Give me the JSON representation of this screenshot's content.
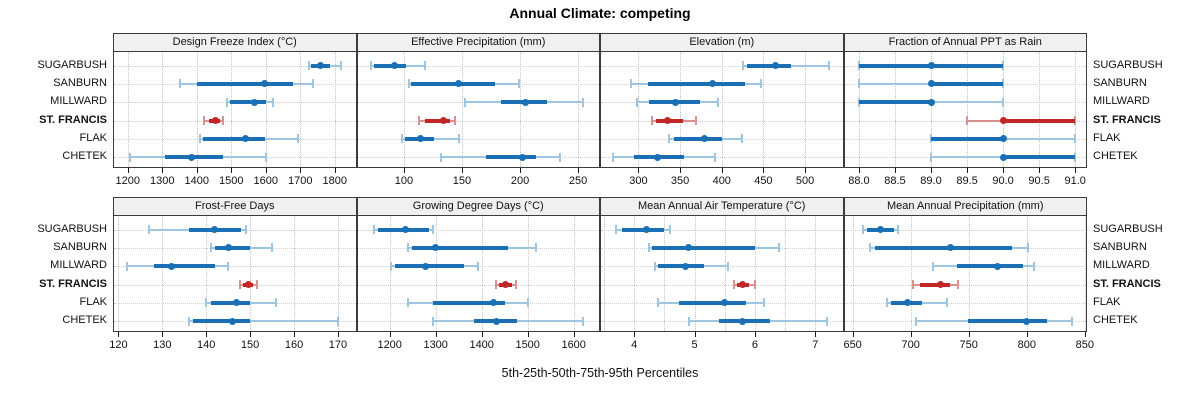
{
  "title": "Annual Climate: competing",
  "xlabel": "5th-25th-50th-75th-95th Percentiles",
  "sites": [
    "SUGARBUSH",
    "SANBURN",
    "MILLWARD",
    "ST. FRANCIS",
    "FLAK",
    "CHETEK"
  ],
  "highlight_site": "ST. FRANCIS",
  "colors": {
    "blue": "#1b6fb5",
    "blue_light": "#9fc6e1",
    "red": "#c22727",
    "red_light": "#dc9191",
    "header_bg": "#f0f0f0",
    "panel_border": "#3c3c3c",
    "grid": "#c3c3c3"
  },
  "chart_data": {
    "type": "dotplot_percentiles",
    "percentiles": [
      5,
      25,
      50,
      75,
      95
    ],
    "layout": {
      "rows": 2,
      "cols": 4,
      "legend": "none",
      "grid": "dotted"
    },
    "panels": [
      {
        "title": "Design Freeze Index (°C)",
        "row": 0,
        "col": 0,
        "xlim": [
          1160,
          1860
        ],
        "ticks": {
          "values": [
            1200,
            1300,
            1400,
            1500,
            1600,
            1700,
            1800
          ],
          "labels": [
            "1200",
            "1300",
            "1400",
            "1500",
            "1600",
            "1700",
            "1800"
          ]
        },
        "series": [
          {
            "site": "SUGARBUSH",
            "p": [
              1725,
              1732,
              1758,
              1786,
              1818
            ]
          },
          {
            "site": "SANBURN",
            "p": [
              1350,
              1400,
              1597,
              1680,
              1738
            ]
          },
          {
            "site": "MILLWARD",
            "p": [
              1488,
              1495,
              1568,
              1601,
              1622
            ]
          },
          {
            "site": "ST. FRANCIS",
            "p": [
              1421,
              1434,
              1455,
              1468,
              1476
            ]
          },
          {
            "site": "FLAK",
            "p": [
              1408,
              1418,
              1540,
              1599,
              1693
            ]
          },
          {
            "site": "CHETEK",
            "p": [
              1206,
              1308,
              1386,
              1476,
              1601
            ]
          }
        ]
      },
      {
        "title": "Effective Precipitation (mm)",
        "row": 0,
        "col": 1,
        "xlim": [
          60,
          268
        ],
        "ticks": {
          "values": [
            100,
            150,
            200,
            250
          ],
          "labels": [
            "100",
            "150",
            "200",
            "250"
          ]
        },
        "series": [
          {
            "site": "SUGARBUSH",
            "p": [
              72,
              74,
              92,
              102,
              118
            ]
          },
          {
            "site": "SANBURN",
            "p": [
              104,
              106,
              147,
              178,
              199
            ]
          },
          {
            "site": "MILLWARD",
            "p": [
              153,
              184,
              205,
              223,
              254
            ]
          },
          {
            "site": "ST. FRANCIS",
            "p": [
              113,
              118,
              134,
              140,
              144
            ]
          },
          {
            "site": "FLAK",
            "p": [
              98,
              101,
              114,
              126,
              147
            ]
          },
          {
            "site": "CHETEK",
            "p": [
              132,
              171,
              202,
              214,
              234
            ]
          }
        ]
      },
      {
        "title": "Elevation (m)",
        "row": 0,
        "col": 2,
        "xlim": [
          255,
          545
        ],
        "ticks": {
          "values": [
            300,
            350,
            400,
            450,
            500
          ],
          "labels": [
            "300",
            "350",
            "400",
            "450",
            "500"
          ]
        },
        "series": [
          {
            "site": "SUGARBUSH",
            "p": [
              425,
              430,
              464,
              483,
              529
            ]
          },
          {
            "site": "SANBURN",
            "p": [
              291,
              311,
              389,
              428,
              447
            ]
          },
          {
            "site": "MILLWARD",
            "p": [
              298,
              313,
              345,
              374,
              396
            ]
          },
          {
            "site": "ST. FRANCIS",
            "p": [
              316,
              321,
              335,
              353,
              369
            ]
          },
          {
            "site": "FLAK",
            "p": [
              337,
              343,
              379,
              400,
              424
            ]
          },
          {
            "site": "CHETEK",
            "p": [
              269,
              295,
              323,
              355,
              392
            ]
          }
        ]
      },
      {
        "title": "Fraction of Annual PPT as Rain",
        "row": 0,
        "col": 3,
        "xlim": [
          87.8,
          91.15
        ],
        "ticks": {
          "values": [
            88.0,
            88.5,
            89.0,
            89.5,
            90.0,
            90.5,
            91.0
          ],
          "labels": [
            "88.0",
            "88.5",
            "89.0",
            "89.5",
            "90.0",
            "90.5",
            "91.0"
          ]
        },
        "series": [
          {
            "site": "SUGARBUSH",
            "p": [
              88.0,
              88.0,
              89.0,
              90.0,
              90.0
            ]
          },
          {
            "site": "SANBURN",
            "p": [
              88.0,
              89.0,
              89.0,
              90.0,
              90.0
            ]
          },
          {
            "site": "MILLWARD",
            "p": [
              88.0,
              88.0,
              89.0,
              89.0,
              90.0
            ]
          },
          {
            "site": "ST. FRANCIS",
            "p": [
              89.5,
              90.0,
              90.0,
              91.0,
              91.0
            ]
          },
          {
            "site": "FLAK",
            "p": [
              89.0,
              89.0,
              90.0,
              90.0,
              91.0
            ]
          },
          {
            "site": "CHETEK",
            "p": [
              89.0,
              90.0,
              90.0,
              91.0,
              91.0
            ]
          }
        ]
      },
      {
        "title": "Frost-Free Days",
        "row": 1,
        "col": 0,
        "xlim": [
          119,
          174
        ],
        "ticks": {
          "values": [
            120,
            130,
            140,
            150,
            160,
            170
          ],
          "labels": [
            "120",
            "130",
            "140",
            "150",
            "160",
            "170"
          ]
        },
        "series": [
          {
            "site": "SUGARBUSH",
            "p": [
              127,
              136,
              142,
              148,
              149
            ]
          },
          {
            "site": "SANBURN",
            "p": [
              141,
              142,
              145,
              150,
              155
            ]
          },
          {
            "site": "MILLWARD",
            "p": [
              122,
              128,
              132,
              142,
              145
            ]
          },
          {
            "site": "ST. FRANCIS",
            "p": [
              147.7,
              148.3,
              149.7,
              150.6,
              151.5
            ]
          },
          {
            "site": "FLAK",
            "p": [
              140,
              141,
              147,
              150,
              156
            ]
          },
          {
            "site": "CHETEK",
            "p": [
              136,
              137,
              146,
              150,
              170
            ]
          }
        ]
      },
      {
        "title": "Growing Degree Days (°C)",
        "row": 1,
        "col": 1,
        "xlim": [
          1130,
          1655
        ],
        "ticks": {
          "values": [
            1200,
            1300,
            1400,
            1500,
            1600
          ],
          "labels": [
            "1200",
            "1300",
            "1400",
            "1500",
            "1600"
          ]
        },
        "series": [
          {
            "site": "SUGARBUSH",
            "p": [
              1166,
              1175,
              1235,
              1285,
              1294
            ]
          },
          {
            "site": "SANBURN",
            "p": [
              1240,
              1248,
              1300,
              1458,
              1517
            ]
          },
          {
            "site": "MILLWARD",
            "p": [
              1202,
              1211,
              1278,
              1362,
              1391
            ]
          },
          {
            "site": "ST. FRANCIS",
            "p": [
              1432,
              1437,
              1452,
              1465,
              1475
            ]
          },
          {
            "site": "FLAK",
            "p": [
              1240,
              1295,
              1426,
              1451,
              1500
            ]
          },
          {
            "site": "CHETEK",
            "p": [
              1295,
              1384,
              1432,
              1476,
              1620
            ]
          }
        ]
      },
      {
        "title": "Mean Annual Air Temperature (°C)",
        "row": 1,
        "col": 2,
        "xlim": [
          3.45,
          7.45
        ],
        "ticks": {
          "values": [
            4,
            5,
            6,
            7
          ],
          "labels": [
            "4",
            "5",
            "6",
            "7"
          ]
        },
        "grid_values": [
          3.5,
          4.0,
          4.5,
          5.0,
          5.5,
          6.0,
          6.5,
          7.0
        ],
        "series": [
          {
            "site": "SUGARBUSH",
            "p": [
              3.7,
              3.8,
              4.2,
              4.5,
              4.6
            ]
          },
          {
            "site": "SANBURN",
            "p": [
              4.25,
              4.3,
              4.9,
              6.0,
              6.4
            ]
          },
          {
            "site": "MILLWARD",
            "p": [
              4.35,
              4.4,
              4.85,
              5.15,
              5.55
            ]
          },
          {
            "site": "ST. FRANCIS",
            "p": [
              5.65,
              5.7,
              5.8,
              5.9,
              6.0
            ]
          },
          {
            "site": "FLAK",
            "p": [
              4.4,
              4.75,
              5.5,
              5.85,
              6.15
            ]
          },
          {
            "site": "CHETEK",
            "p": [
              4.9,
              5.4,
              5.8,
              6.25,
              7.2
            ]
          }
        ]
      },
      {
        "title": "Mean Annual Precipitation (mm)",
        "row": 1,
        "col": 3,
        "xlim": [
          643,
          851
        ],
        "ticks": {
          "values": [
            650,
            700,
            750,
            800,
            850
          ],
          "labels": [
            "650",
            "700",
            "750",
            "800",
            "850"
          ]
        },
        "series": [
          {
            "site": "SUGARBUSH",
            "p": [
              659,
              662,
              674,
              686,
              689
            ]
          },
          {
            "site": "SANBURN",
            "p": [
              665,
              669,
              734,
              787,
              801
            ]
          },
          {
            "site": "MILLWARD",
            "p": [
              719,
              740,
              775,
              797,
              806
            ]
          },
          {
            "site": "ST. FRANCIS",
            "p": [
              702,
              708,
              726,
              734,
              741
            ]
          },
          {
            "site": "FLAK",
            "p": [
              680,
              683,
              697,
              710,
              731
            ]
          },
          {
            "site": "CHETEK",
            "p": [
              705,
              749,
              800,
              817,
              839
            ]
          }
        ]
      }
    ]
  }
}
